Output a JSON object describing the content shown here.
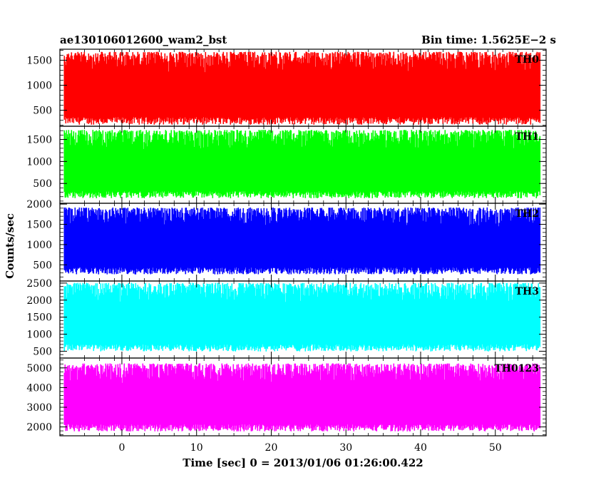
{
  "header": {
    "obs_id": "ae130106012600_wam2_bst",
    "bin_time": "Bin time: 1.5625E−2 s"
  },
  "chart_data": {
    "type": "line",
    "xlabel": "Time [sec] 0 = 2013/01/06 01:26:00.422",
    "ylabel": "Counts/sec",
    "xlim": [
      -8.3,
      56.8
    ],
    "x_ticks": [
      0,
      10,
      20,
      30,
      40,
      50
    ],
    "data_x_range": [
      -7.7,
      56.0
    ],
    "bin_time": 0.015625,
    "panels": [
      {
        "name": "TH0",
        "color": "#ff0000",
        "ylim": [
          180,
          1720
        ],
        "y_ticks": [
          500,
          1000,
          1500
        ],
        "level": [
          180,
          1700
        ]
      },
      {
        "name": "TH1",
        "color": "#00ff00",
        "ylim": [
          50,
          1800
        ],
        "y_ticks": [
          500,
          1000,
          1500
        ],
        "level": [
          130,
          1750
        ]
      },
      {
        "name": "TH2",
        "color": "#0000ff",
        "ylim": [
          100,
          2020
        ],
        "y_ticks": [
          500,
          1000,
          1500,
          2000
        ],
        "level": [
          230,
          1950
        ]
      },
      {
        "name": "TH3",
        "color": "#00ffff",
        "ylim": [
          300,
          2560
        ],
        "y_ticks": [
          500,
          1000,
          1500,
          2000,
          2500
        ],
        "level": [
          450,
          2550
        ]
      },
      {
        "name": "TH0123",
        "color": "#ff00ff",
        "ylim": [
          1550,
          5500
        ],
        "y_ticks": [
          2000,
          3000,
          4000,
          5000
        ],
        "level": [
          1700,
          5300
        ]
      }
    ]
  }
}
